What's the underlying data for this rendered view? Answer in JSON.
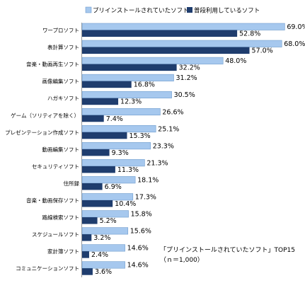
{
  "chart_data": {
    "type": "bar",
    "orientation": "horizontal",
    "categories": [
      "ワープロソフト",
      "表計算ソフト",
      "音楽・動画再生ソフト",
      "画像編集ソフト",
      "ハガキソフト",
      "ゲーム（ソリティアを除く）",
      "プレゼンテーション作成ソフト",
      "動画編集ソフト",
      "セキュリティソフト",
      "住所録",
      "音楽・動画保存ソフト",
      "路線検索ソフト",
      "スケジュールソフト",
      "家計簿ソフト",
      "コミュニケーションソフト"
    ],
    "series": [
      {
        "name": "プリインストールされていたソフト",
        "color": "#a6c8ee",
        "values": [
          69.0,
          68.0,
          48.0,
          31.2,
          30.5,
          26.6,
          25.1,
          23.3,
          21.3,
          18.1,
          17.3,
          15.8,
          15.6,
          14.6,
          14.6
        ],
        "labels": [
          "69.0%",
          "68.0%",
          "48.0%",
          "31.2%",
          "30.5%",
          "26.6%",
          "25.1%",
          "23.3%",
          "21.3%",
          "18.1%",
          "17.3%",
          "15.8%",
          "15.6%",
          "14.6%",
          "14.6%"
        ]
      },
      {
        "name": "普段利用しているソフト",
        "color": "#1f3d6e",
        "values": [
          52.8,
          57.0,
          32.2,
          16.8,
          12.3,
          7.4,
          15.3,
          9.3,
          11.3,
          6.9,
          10.4,
          5.2,
          3.2,
          2.4,
          3.6
        ],
        "labels": [
          "52.8%",
          "57.0%",
          "32.2%",
          "16.8%",
          "12.3%",
          "7.4%",
          "15.3%",
          "9.3%",
          "11.3%",
          "6.9%",
          "10.4%",
          "5.2%",
          "3.2%",
          "2.4%",
          "3.6%"
        ]
      }
    ],
    "xlim": [
      0,
      80
    ],
    "grid": false,
    "legend_position": "top-right",
    "annotation": [
      "「プリインストールされていたソフト」TOP15",
      "（ｎ＝1,000）"
    ]
  }
}
